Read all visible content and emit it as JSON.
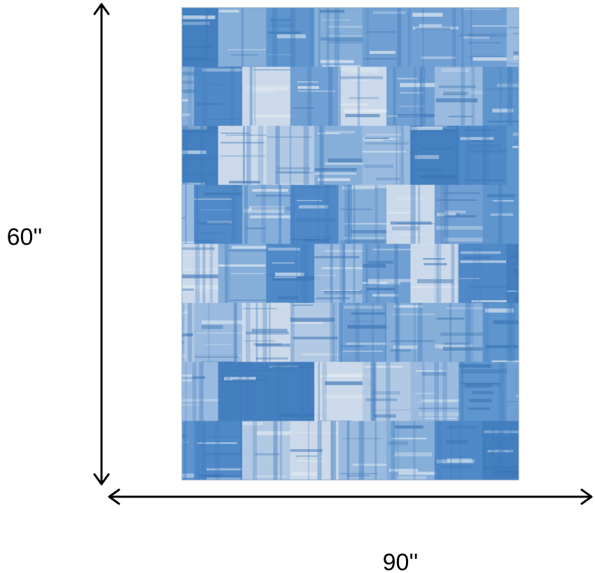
{
  "height_label": "60''",
  "width_label": "90''"
}
